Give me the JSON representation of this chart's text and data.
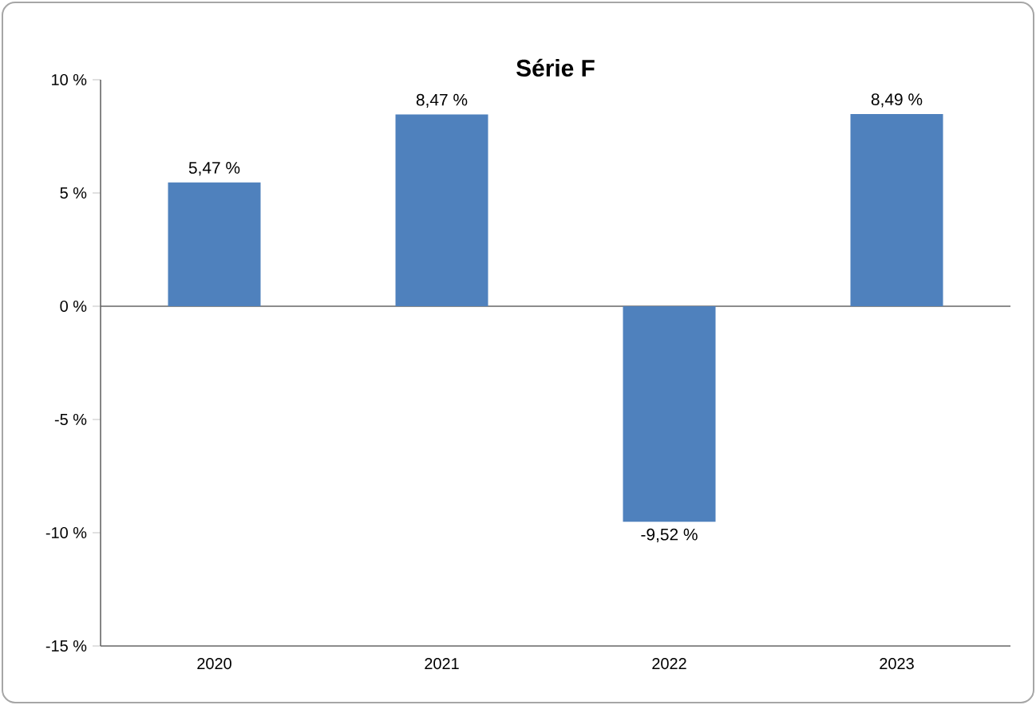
{
  "chart_data": {
    "type": "bar",
    "title": "Série F",
    "categories": [
      "2020",
      "2021",
      "2022",
      "2023"
    ],
    "values": [
      5.47,
      8.47,
      -9.52,
      8.49
    ],
    "value_labels": [
      "5,47 %",
      "8,47 %",
      "-9,52 %",
      "8,49 %"
    ],
    "color": "#4f81bd",
    "ylim": [
      -15,
      10
    ],
    "yticks": [
      {
        "value": -15,
        "label": "-15 %"
      },
      {
        "value": -10,
        "label": "-10 %"
      },
      {
        "value": -5,
        "label": "-5 %"
      },
      {
        "value": 0,
        "label": "0 %"
      },
      {
        "value": 5,
        "label": "5 %"
      },
      {
        "value": 10,
        "label": "10 %"
      }
    ]
  }
}
